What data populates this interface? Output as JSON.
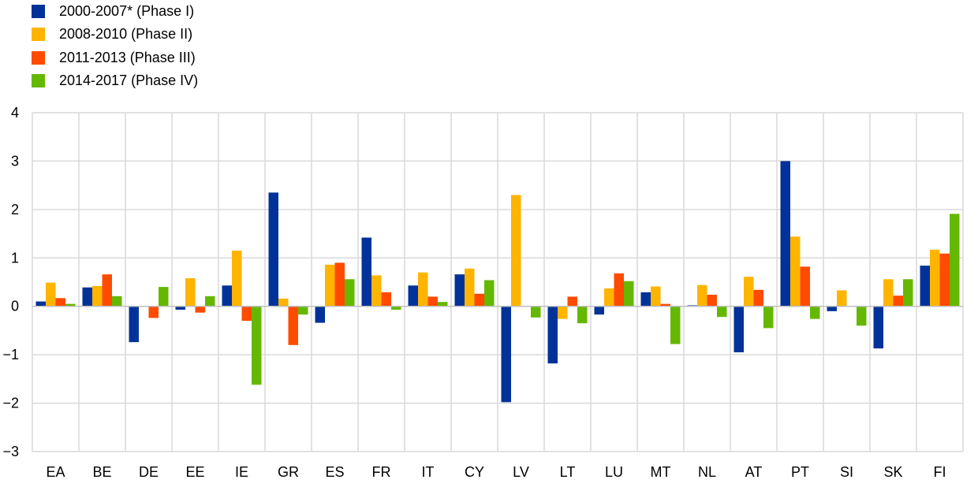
{
  "chart_data": {
    "type": "bar",
    "categories": [
      "EA",
      "BE",
      "DE",
      "EE",
      "IE",
      "GR",
      "ES",
      "FR",
      "IT",
      "CY",
      "LV",
      "LT",
      "LU",
      "MT",
      "NL",
      "AT",
      "PT",
      "SI",
      "SK",
      "FI"
    ],
    "series": [
      {
        "name": "2000-2007* (Phase I)",
        "color": "#003299",
        "values": [
          0.1,
          0.39,
          -0.74,
          -0.07,
          0.43,
          2.35,
          -0.34,
          1.42,
          0.43,
          0.66,
          -1.98,
          -1.18,
          -0.17,
          0.29,
          0.02,
          -0.95,
          3.0,
          -0.1,
          -0.87,
          0.84
        ]
      },
      {
        "name": "2008-2010 (Phase II)",
        "color": "#FFB400",
        "values": [
          0.49,
          0.42,
          0.0,
          0.58,
          1.15,
          0.16,
          0.86,
          0.64,
          0.7,
          0.78,
          2.3,
          -0.26,
          0.37,
          0.41,
          0.44,
          0.61,
          1.44,
          0.33,
          0.56,
          1.17
        ]
      },
      {
        "name": "2011-2013 (Phase III)",
        "color": "#FF4B00",
        "values": [
          0.17,
          0.66,
          -0.24,
          -0.13,
          -0.3,
          -0.8,
          0.9,
          0.29,
          0.2,
          0.26,
          0.0,
          0.2,
          0.68,
          0.05,
          0.24,
          0.34,
          0.82,
          0.0,
          0.22,
          1.09
        ]
      },
      {
        "name": "2014-2017 (Phase IV)",
        "color": "#65B800",
        "values": [
          0.05,
          0.21,
          0.4,
          0.21,
          -1.62,
          -0.17,
          0.56,
          -0.07,
          0.09,
          0.54,
          -0.23,
          -0.35,
          0.52,
          -0.78,
          -0.22,
          -0.45,
          -0.26,
          -0.4,
          0.56,
          1.91
        ]
      }
    ],
    "yticks": [
      "4",
      "3",
      "2",
      "1",
      "0",
      "-1",
      "-2",
      "-3"
    ],
    "ylim": [
      -3,
      4
    ],
    "grid": true,
    "legend_position": "top-left"
  }
}
